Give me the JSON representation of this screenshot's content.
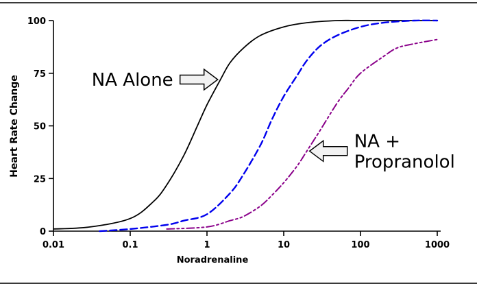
{
  "chart_data": {
    "type": "line",
    "title": "",
    "xlabel": "Noradrenaline",
    "ylabel": "Heart Rate Change",
    "x_scale": "log",
    "xlim": [
      0.01,
      1000
    ],
    "ylim": [
      0,
      100
    ],
    "x_ticks": [
      0.01,
      0.1,
      1,
      10,
      100,
      1000
    ],
    "x_tick_labels": [
      "0.01",
      "0.1",
      "1",
      "10",
      "100",
      "1000"
    ],
    "y_ticks": [
      0,
      25,
      50,
      75,
      100
    ],
    "y_tick_labels": [
      "0",
      "25",
      "50",
      "75",
      "100"
    ],
    "grid": false,
    "legend": "none",
    "axis_color": "#000000",
    "annotation_arrow_fill": "#f2f2f2",
    "series": [
      {
        "id": "na-alone",
        "label": "NA Alone",
        "color": "#000000",
        "dash": "solid",
        "width": 1.8,
        "points": [
          [
            0.01,
            1
          ],
          [
            0.03,
            2
          ],
          [
            0.1,
            6
          ],
          [
            0.2,
            14
          ],
          [
            0.3,
            22
          ],
          [
            0.5,
            36
          ],
          [
            0.75,
            50
          ],
          [
            1,
            60
          ],
          [
            1.5,
            72
          ],
          [
            2,
            80
          ],
          [
            3,
            87
          ],
          [
            5,
            93
          ],
          [
            10,
            97
          ],
          [
            20,
            99
          ],
          [
            50,
            100
          ],
          [
            100,
            100
          ],
          [
            300,
            100
          ],
          [
            1000,
            100
          ]
        ]
      },
      {
        "id": "middle-curve",
        "label": "",
        "color": "#0000ee",
        "dash": "10 5",
        "width": 2.4,
        "points": [
          [
            0.04,
            0
          ],
          [
            0.1,
            1
          ],
          [
            0.3,
            3
          ],
          [
            0.5,
            5
          ],
          [
            1,
            8
          ],
          [
            2,
            18
          ],
          [
            3,
            27
          ],
          [
            5,
            41
          ],
          [
            7,
            53
          ],
          [
            10,
            64
          ],
          [
            15,
            74
          ],
          [
            20,
            81
          ],
          [
            30,
            88
          ],
          [
            50,
            93
          ],
          [
            100,
            97
          ],
          [
            200,
            99
          ],
          [
            500,
            100
          ],
          [
            1000,
            100
          ]
        ]
      },
      {
        "id": "na-propranolol",
        "label": "NA + Propranolol",
        "color": "#8a008a",
        "dash": "11 4 3 4 3 4",
        "width": 2,
        "points": [
          [
            0.3,
            1
          ],
          [
            1,
            2
          ],
          [
            2,
            5
          ],
          [
            3,
            7
          ],
          [
            5,
            12
          ],
          [
            7,
            17
          ],
          [
            10,
            23
          ],
          [
            15,
            31
          ],
          [
            20,
            38
          ],
          [
            30,
            48
          ],
          [
            50,
            61
          ],
          [
            70,
            68
          ],
          [
            100,
            75
          ],
          [
            200,
            83
          ],
          [
            300,
            87
          ],
          [
            500,
            89
          ],
          [
            1000,
            91
          ]
        ]
      }
    ],
    "annotations": [
      {
        "id": "na-alone",
        "lines": [
          "NA Alone"
        ],
        "arrow_dir": "right",
        "anchor_x": 1.5,
        "anchor_y": 72
      },
      {
        "id": "na-propranolol",
        "lines": [
          "NA +",
          "Propranolol"
        ],
        "arrow_dir": "left",
        "anchor_x": 20,
        "anchor_y": 38
      }
    ]
  }
}
